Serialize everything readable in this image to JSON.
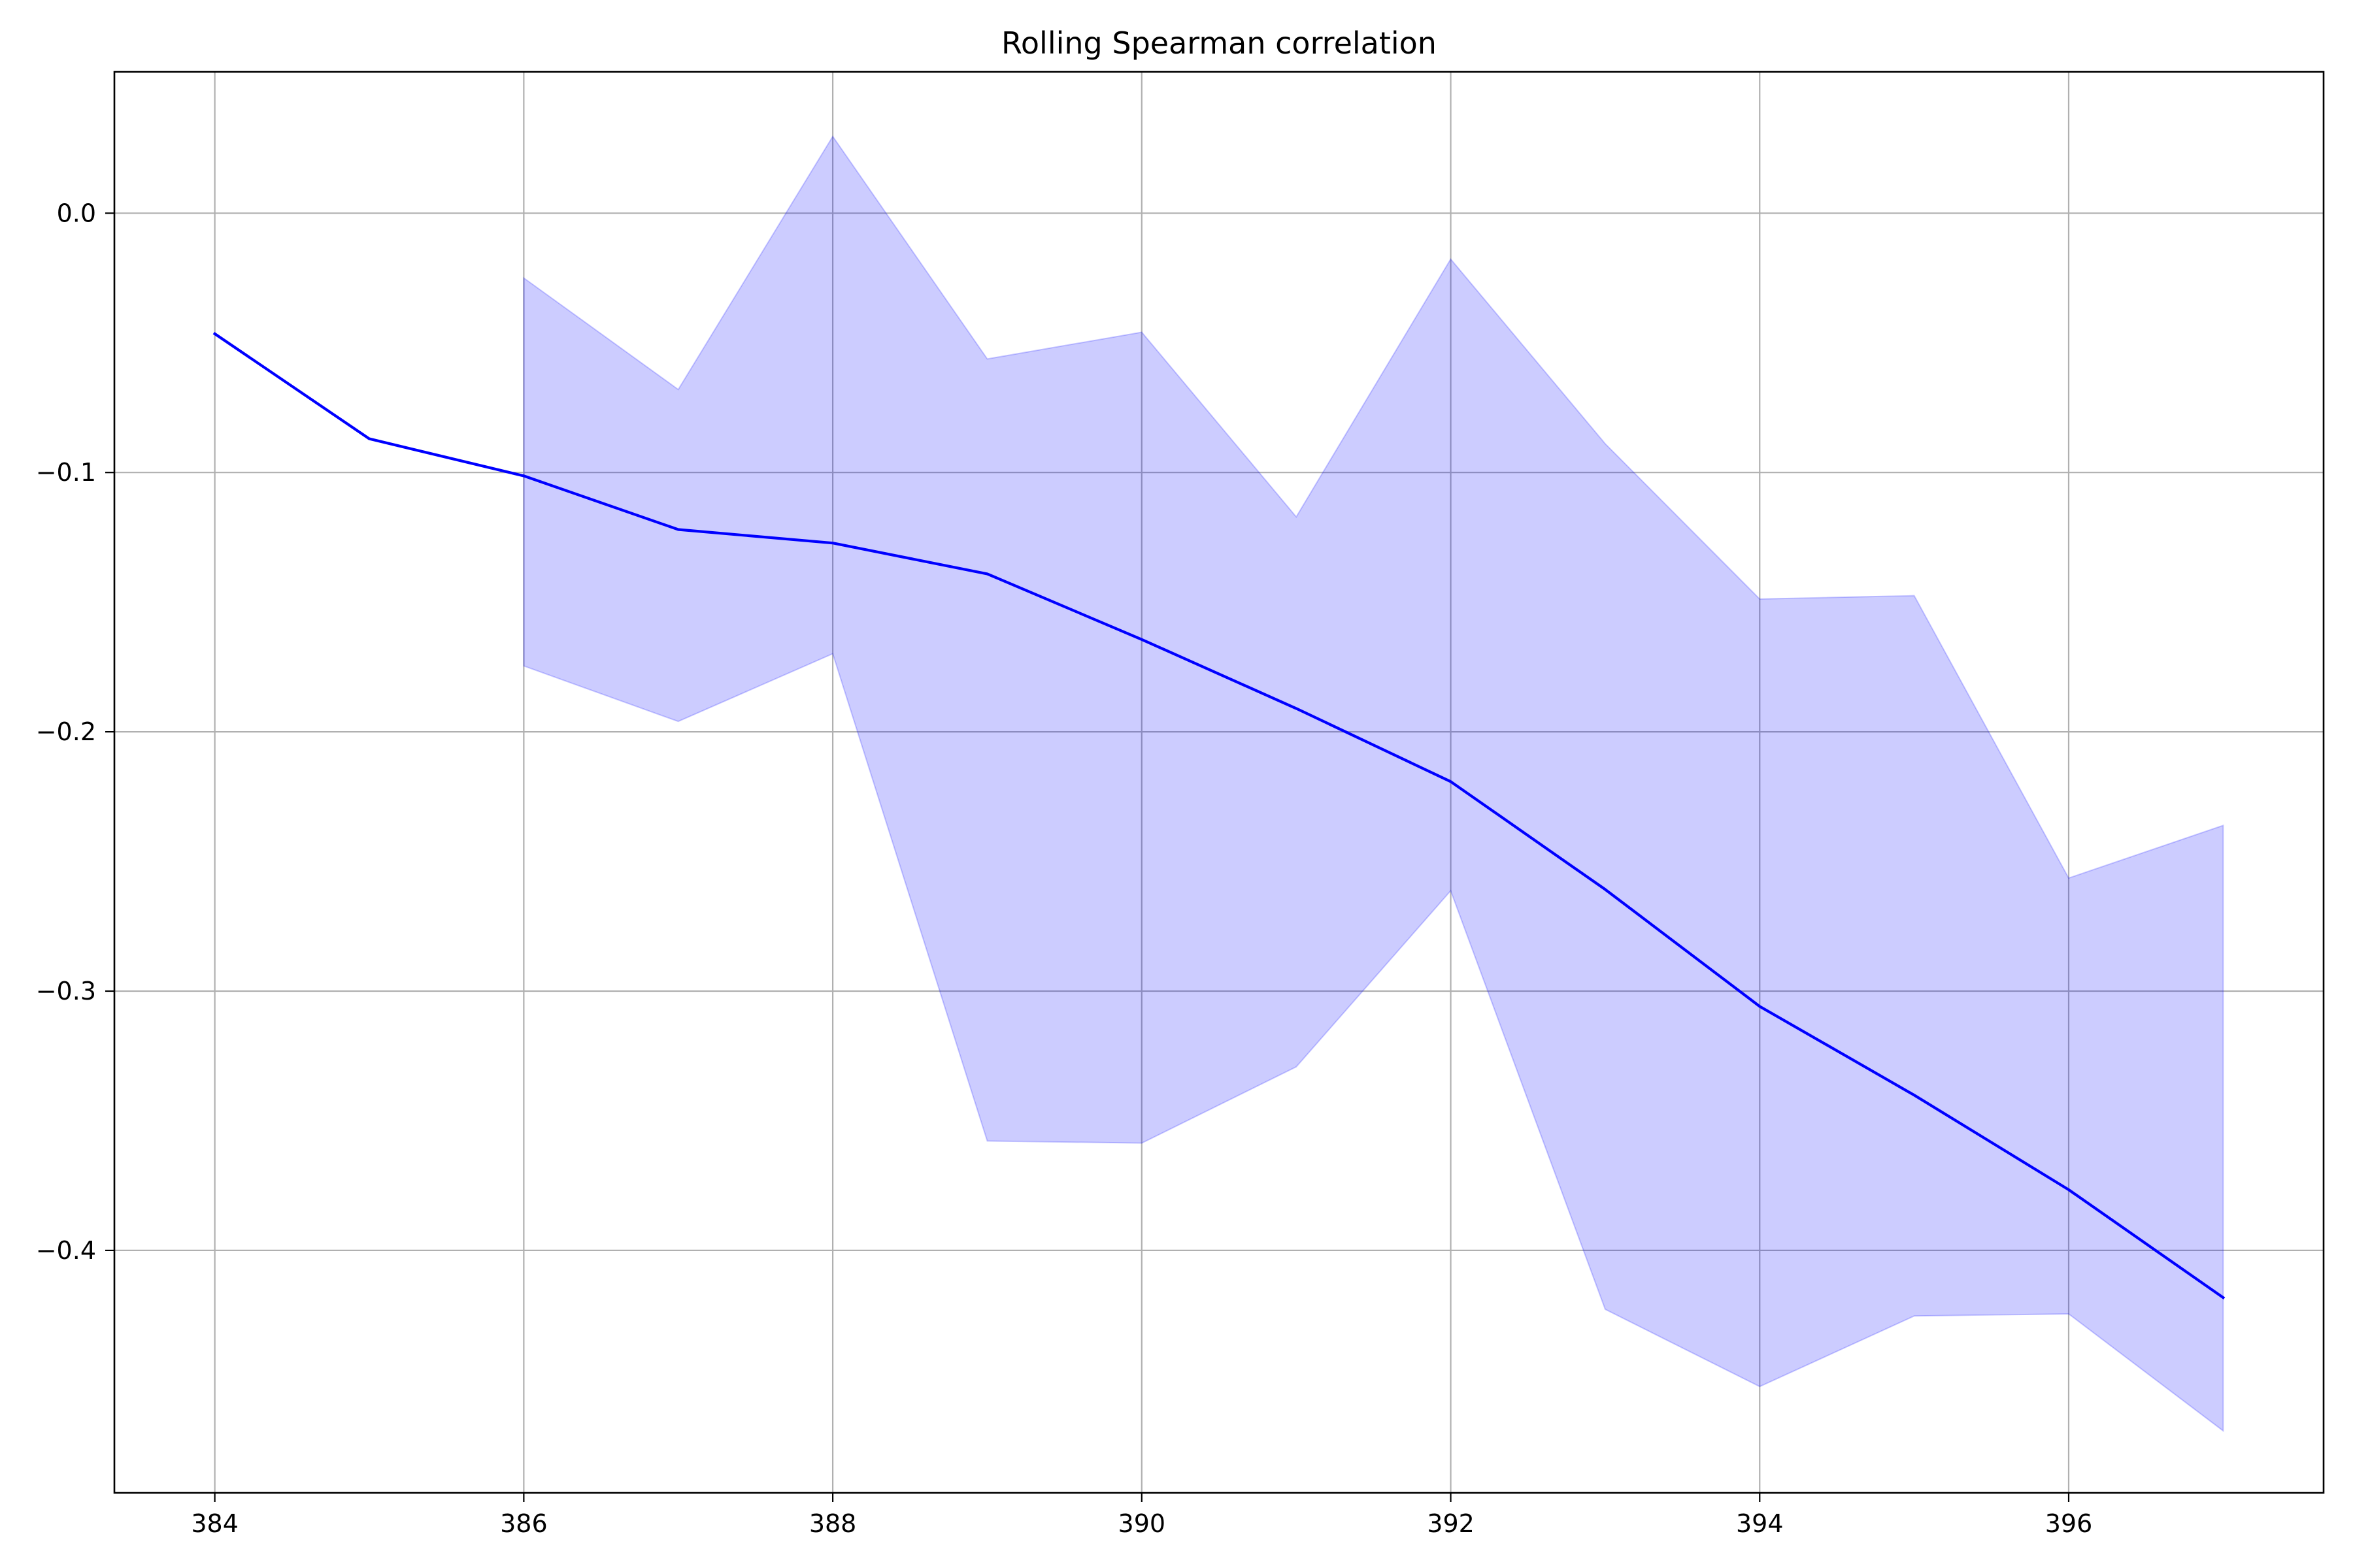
{
  "chart_data": {
    "type": "line",
    "title": "Rolling Spearman correlation",
    "xlabel": "",
    "ylabel": "",
    "xlim": [
      383.35,
      397.65
    ],
    "ylim": [
      -0.4935,
      0.0545
    ],
    "x_ticks": [
      384,
      386,
      388,
      390,
      392,
      394,
      396
    ],
    "x_tick_labels": [
      "384",
      "386",
      "388",
      "390",
      "392",
      "394",
      "396"
    ],
    "y_ticks": [
      0.0,
      -0.1,
      -0.2,
      -0.3,
      -0.4
    ],
    "y_tick_labels": [
      "0.0",
      "−0.1",
      "−0.2",
      "−0.3",
      "−0.4"
    ],
    "grid": true,
    "series": [
      {
        "x": [
          384,
          385,
          386,
          387,
          388,
          389,
          390,
          391,
          392,
          393,
          394,
          395,
          396,
          397
        ],
        "values": [
          -0.0465,
          -0.087,
          -0.1013,
          -0.122,
          -0.1272,
          -0.1391,
          -0.1644,
          -0.191,
          -0.2192,
          -0.2608,
          -0.3059,
          -0.3401,
          -0.3766,
          -0.4182
        ],
        "color": "#0000ff"
      }
    ],
    "band": {
      "x": [
        386,
        387,
        388,
        389,
        390,
        391,
        392,
        393,
        394,
        395,
        396,
        397
      ],
      "upper": [
        -0.025,
        -0.068,
        0.0296,
        -0.0562,
        -0.0459,
        -0.1171,
        -0.0177,
        -0.0889,
        -0.1488,
        -0.1475,
        -0.2564,
        -0.2361
      ],
      "lower": [
        -0.1746,
        -0.196,
        -0.1699,
        -0.3578,
        -0.3586,
        -0.3292,
        -0.2613,
        -0.4227,
        -0.4525,
        -0.4253,
        -0.4245,
        -0.4696
      ],
      "color": "#0000ff",
      "alpha": 0.2
    }
  }
}
